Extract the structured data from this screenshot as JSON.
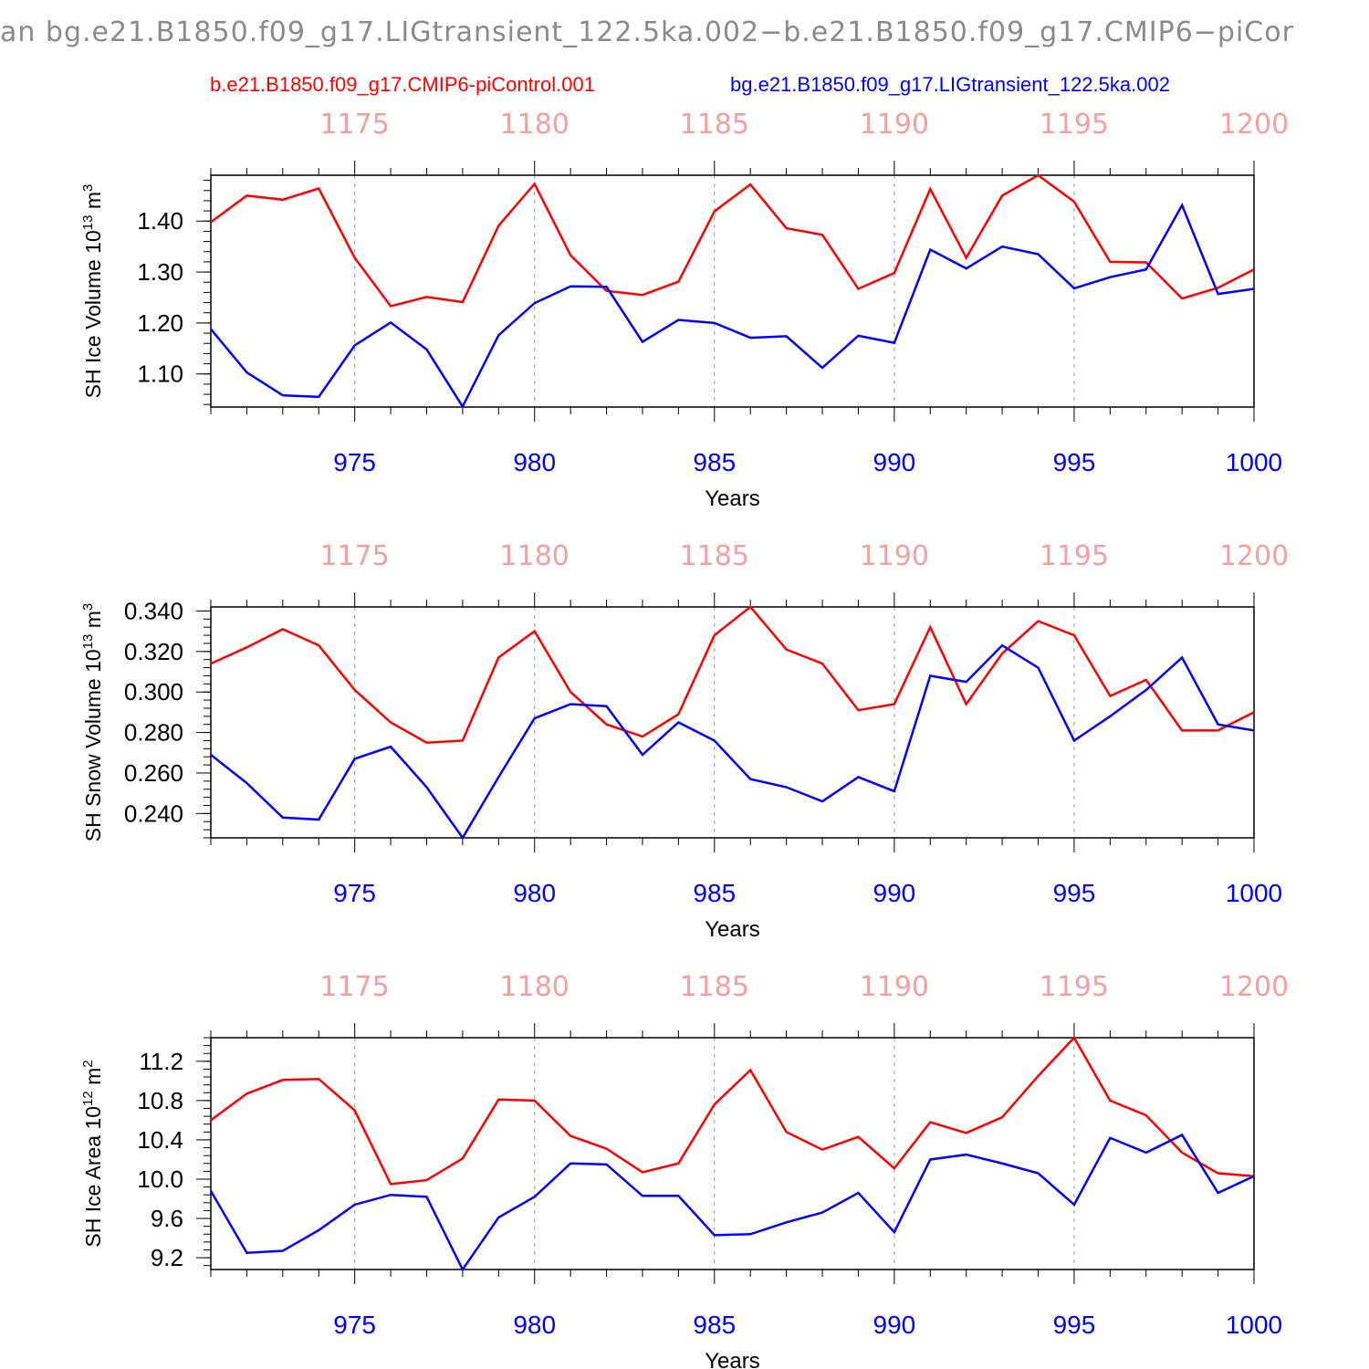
{
  "title": "an bg.e21.B1850.f09_g17.LIGtransient_122.5ka.002−b.e21.B1850.f09_g17.CMIP6−piCor",
  "legend": {
    "red": "b.e21.B1850.f09_g17.CMIP6-piControl.001",
    "blue": "bg.e21.B1850.f09_g17.LIGtransient_122.5ka.002"
  },
  "colors": {
    "red": "#ff0000",
    "blue": "#0000ff",
    "top_axis": "#f4a0a0",
    "grid": "#999999"
  },
  "chart_data": [
    {
      "type": "line",
      "ylabel": "SH Ice Volume 10",
      "ylabel_sup": "13",
      "ylabel_unit": " m",
      "ylabel_unit_sup": "3",
      "xlabel": "Years",
      "xlim": [
        971,
        1000
      ],
      "ylim": [
        1.035,
        1.49
      ],
      "yticks": [
        1.1,
        1.2,
        1.3,
        1.4
      ],
      "ytick_labels": [
        "1.10",
        "1.20",
        "1.30",
        "1.40"
      ],
      "yminor": 0.02,
      "xticks": [
        975,
        980,
        985,
        990,
        995,
        1000
      ],
      "xtick_labels": [
        "975",
        "980",
        "985",
        "990",
        "995",
        "1000"
      ],
      "top_tick_labels": [
        "1175",
        "1180",
        "1185",
        "1190",
        "1195",
        "1200"
      ],
      "x": [
        971,
        972,
        973,
        974,
        975,
        976,
        977,
        978,
        979,
        980,
        981,
        982,
        983,
        984,
        985,
        986,
        987,
        988,
        989,
        990,
        991,
        992,
        993,
        994,
        995,
        996,
        997,
        998,
        999,
        1000
      ],
      "series": [
        {
          "name": "b.e21.B1850.f09_g17.CMIP6-piControl.001",
          "color": "#ff0000",
          "values": [
            1.398,
            1.45,
            1.442,
            1.464,
            1.328,
            1.233,
            1.251,
            1.241,
            1.391,
            1.473,
            1.333,
            1.263,
            1.255,
            1.281,
            1.419,
            1.472,
            1.386,
            1.373,
            1.267,
            1.298,
            1.463,
            1.328,
            1.45,
            1.49,
            1.438,
            1.32,
            1.319,
            1.248,
            1.269,
            1.305
          ]
        },
        {
          "name": "bg.e21.B1850.f09_g17.LIGtransient_122.5ka.002",
          "color": "#0000ff",
          "values": [
            1.188,
            1.103,
            1.058,
            1.055,
            1.156,
            1.201,
            1.148,
            1.036,
            1.176,
            1.239,
            1.272,
            1.271,
            1.163,
            1.206,
            1.2,
            1.171,
            1.174,
            1.112,
            1.175,
            1.161,
            1.344,
            1.307,
            1.35,
            1.335,
            1.268,
            1.29,
            1.305,
            1.431,
            1.257,
            1.267
          ]
        }
      ]
    },
    {
      "type": "line",
      "ylabel": "SH Snow Volume 10",
      "ylabel_sup": "13",
      "ylabel_unit": " m",
      "ylabel_unit_sup": "3",
      "xlabel": "Years",
      "xlim": [
        971,
        1000
      ],
      "ylim": [
        0.228,
        0.342
      ],
      "yticks": [
        0.24,
        0.26,
        0.28,
        0.3,
        0.32,
        0.34
      ],
      "ytick_labels": [
        "0.240",
        "0.260",
        "0.280",
        "0.300",
        "0.320",
        "0.340"
      ],
      "yminor": 0.004,
      "xticks": [
        975,
        980,
        985,
        990,
        995,
        1000
      ],
      "xtick_labels": [
        "975",
        "980",
        "985",
        "990",
        "995",
        "1000"
      ],
      "top_tick_labels": [
        "1175",
        "1180",
        "1185",
        "1190",
        "1195",
        "1200"
      ],
      "x": [
        971,
        972,
        973,
        974,
        975,
        976,
        977,
        978,
        979,
        980,
        981,
        982,
        983,
        984,
        985,
        986,
        987,
        988,
        989,
        990,
        991,
        992,
        993,
        994,
        995,
        996,
        997,
        998,
        999,
        1000
      ],
      "series": [
        {
          "name": "b.e21.B1850.f09_g17.CMIP6-piControl.001",
          "color": "#ff0000",
          "values": [
            0.314,
            0.322,
            0.331,
            0.323,
            0.301,
            0.285,
            0.275,
            0.276,
            0.317,
            0.33,
            0.3,
            0.284,
            0.278,
            0.289,
            0.328,
            0.342,
            0.321,
            0.314,
            0.291,
            0.294,
            0.332,
            0.294,
            0.319,
            0.335,
            0.328,
            0.298,
            0.306,
            0.281,
            0.281,
            0.29
          ]
        },
        {
          "name": "bg.e21.B1850.f09_g17.LIGtransient_122.5ka.002",
          "color": "#0000ff",
          "values": [
            0.269,
            0.255,
            0.238,
            0.237,
            0.267,
            0.273,
            0.253,
            0.228,
            0.258,
            0.287,
            0.294,
            0.293,
            0.269,
            0.285,
            0.276,
            0.257,
            0.253,
            0.246,
            0.258,
            0.251,
            0.308,
            0.305,
            0.323,
            0.312,
            0.276,
            0.288,
            0.301,
            0.317,
            0.284,
            0.281
          ]
        }
      ]
    },
    {
      "type": "line",
      "ylabel": "SH Ice Area 10",
      "ylabel_sup": "12",
      "ylabel_unit": " m",
      "ylabel_unit_sup": "2",
      "xlabel": "Years",
      "xlim": [
        971,
        1000
      ],
      "ylim": [
        9.08,
        11.44
      ],
      "yticks": [
        9.2,
        9.6,
        10.0,
        10.4,
        10.8,
        11.2
      ],
      "ytick_labels": [
        "9.2",
        "9.6",
        "10.0",
        "10.4",
        "10.8",
        "11.2"
      ],
      "yminor": 0.08,
      "xticks": [
        975,
        980,
        985,
        990,
        995,
        1000
      ],
      "xtick_labels": [
        "975",
        "980",
        "985",
        "990",
        "995",
        "1000"
      ],
      "top_tick_labels": [
        "1175",
        "1180",
        "1185",
        "1190",
        "1195",
        "1200"
      ],
      "x": [
        971,
        972,
        973,
        974,
        975,
        976,
        977,
        978,
        979,
        980,
        981,
        982,
        983,
        984,
        985,
        986,
        987,
        988,
        989,
        990,
        991,
        992,
        993,
        994,
        995,
        996,
        997,
        998,
        999,
        1000
      ],
      "series": [
        {
          "name": "b.e21.B1850.f09_g17.CMIP6-piControl.001",
          "color": "#ff0000",
          "values": [
            10.6,
            10.87,
            11.01,
            11.02,
            10.7,
            9.95,
            9.99,
            10.21,
            10.81,
            10.8,
            10.44,
            10.31,
            10.07,
            10.16,
            10.76,
            11.11,
            10.48,
            10.3,
            10.43,
            10.11,
            10.58,
            10.47,
            10.63,
            11.05,
            11.44,
            10.8,
            10.65,
            10.27,
            10.06,
            10.03
          ]
        },
        {
          "name": "bg.e21.B1850.f09_g17.LIGtransient_122.5ka.002",
          "color": "#0000ff",
          "values": [
            9.88,
            9.25,
            9.27,
            9.48,
            9.74,
            9.84,
            9.82,
            9.08,
            9.61,
            9.82,
            10.16,
            10.15,
            9.83,
            9.83,
            9.43,
            9.44,
            9.56,
            9.66,
            9.86,
            9.46,
            10.2,
            10.25,
            10.16,
            10.06,
            9.74,
            10.42,
            10.27,
            10.45,
            9.86,
            10.03
          ]
        }
      ]
    }
  ]
}
